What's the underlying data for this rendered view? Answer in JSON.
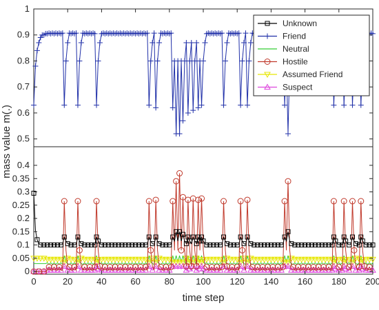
{
  "chart_data": {
    "type": "line",
    "xlabel": "time step",
    "ylabel": "mass value m(.)",
    "x_ticks": [
      0,
      20,
      40,
      60,
      80,
      100,
      120,
      140,
      160,
      180,
      200
    ],
    "xlim": [
      0,
      200
    ],
    "panels": [
      {
        "ylim": [
          0.47,
          1.0
        ],
        "y_ticks": [
          0.5,
          0.6,
          0.7,
          0.8,
          0.9,
          1
        ]
      },
      {
        "ylim": [
          -0.01,
          0.47
        ],
        "y_ticks": [
          0,
          0.05,
          0.1,
          0.15,
          0.2,
          0.25,
          0.3,
          0.35,
          0.4
        ]
      }
    ],
    "top_tick_labels": [
      "0.5",
      "0.6",
      "0.7",
      "0.8",
      "0.9",
      "1"
    ],
    "bottom_tick_labels": [
      "0",
      "0.05",
      "0.1",
      "0.15",
      "0.2",
      "0.25",
      "0.3",
      "0.35",
      "0.4"
    ],
    "legend_position": "top-right",
    "series": [
      {
        "name": "Unknown",
        "color": "#000000",
        "marker": "square",
        "panel": "bottom"
      },
      {
        "name": "Friend",
        "color": "#1f2fa8",
        "marker": "plus",
        "panel": "top"
      },
      {
        "name": "Neutral",
        "color": "#33cc33",
        "marker": "none",
        "panel": "bottom"
      },
      {
        "name": "Hostile",
        "color": "#c0392b",
        "marker": "circle",
        "panel": "bottom"
      },
      {
        "name": "Assumed Friend",
        "color": "#e6e600",
        "marker": "triangle-down",
        "panel": "bottom"
      },
      {
        "name": "Suspect",
        "color": "#dd44dd",
        "marker": "triangle-up",
        "panel": "bottom"
      }
    ],
    "events": [
      {
        "t": 18,
        "friend_min": 0.63,
        "hostile_peak": 0.265,
        "unknown_peak": 0.13
      },
      {
        "t": 26,
        "friend_min": 0.63,
        "hostile_peak": 0.265,
        "unknown_peak": 0.13
      },
      {
        "t": 37,
        "friend_min": 0.63,
        "hostile_peak": 0.265,
        "unknown_peak": 0.13
      },
      {
        "t": 68,
        "friend_min": 0.63,
        "hostile_peak": 0.265,
        "unknown_peak": 0.13
      },
      {
        "t": 72,
        "friend_min": 0.62,
        "hostile_peak": 0.27,
        "unknown_peak": 0.13
      },
      {
        "t": 82,
        "friend_min": 0.62,
        "hostile_peak": 0.265,
        "unknown_peak": 0.13
      },
      {
        "t": 84,
        "friend_min": 0.52,
        "hostile_peak": 0.34,
        "unknown_peak": 0.15
      },
      {
        "t": 86,
        "friend_min": 0.52,
        "hostile_peak": 0.37,
        "unknown_peak": 0.15
      },
      {
        "t": 88,
        "friend_min": 0.57,
        "hostile_peak": 0.28,
        "unknown_peak": 0.14
      },
      {
        "t": 91,
        "friend_min": 0.6,
        "hostile_peak": 0.27,
        "unknown_peak": 0.13
      },
      {
        "t": 94,
        "friend_min": 0.61,
        "hostile_peak": 0.275,
        "unknown_peak": 0.13
      },
      {
        "t": 97,
        "friend_min": 0.62,
        "hostile_peak": 0.27,
        "unknown_peak": 0.13
      },
      {
        "t": 99,
        "friend_min": 0.63,
        "hostile_peak": 0.275,
        "unknown_peak": 0.13
      },
      {
        "t": 112,
        "friend_min": 0.63,
        "hostile_peak": 0.265,
        "unknown_peak": 0.13
      },
      {
        "t": 122,
        "friend_min": 0.63,
        "hostile_peak": 0.265,
        "unknown_peak": 0.13
      },
      {
        "t": 126,
        "friend_min": 0.63,
        "hostile_peak": 0.27,
        "unknown_peak": 0.13
      },
      {
        "t": 148,
        "friend_min": 0.63,
        "hostile_peak": 0.265,
        "unknown_peak": 0.13
      },
      {
        "t": 150,
        "friend_min": 0.52,
        "hostile_peak": 0.34,
        "unknown_peak": 0.15
      },
      {
        "t": 177,
        "friend_min": 0.63,
        "hostile_peak": 0.265,
        "unknown_peak": 0.13
      },
      {
        "t": 183,
        "friend_min": 0.63,
        "hostile_peak": 0.265,
        "unknown_peak": 0.13
      },
      {
        "t": 188,
        "friend_min": 0.63,
        "hostile_peak": 0.265,
        "unknown_peak": 0.13
      },
      {
        "t": 193,
        "friend_min": 0.63,
        "hostile_peak": 0.265,
        "unknown_peak": 0.13
      }
    ],
    "baseline": {
      "friend": 0.905,
      "unknown": 0.1,
      "assumed_friend": 0.05,
      "neutral": 0.03,
      "hostile": 0.005,
      "suspect": 0.005
    },
    "initial": {
      "friend": 0.63,
      "unknown": 0.3,
      "hostile": 0.0
    }
  }
}
